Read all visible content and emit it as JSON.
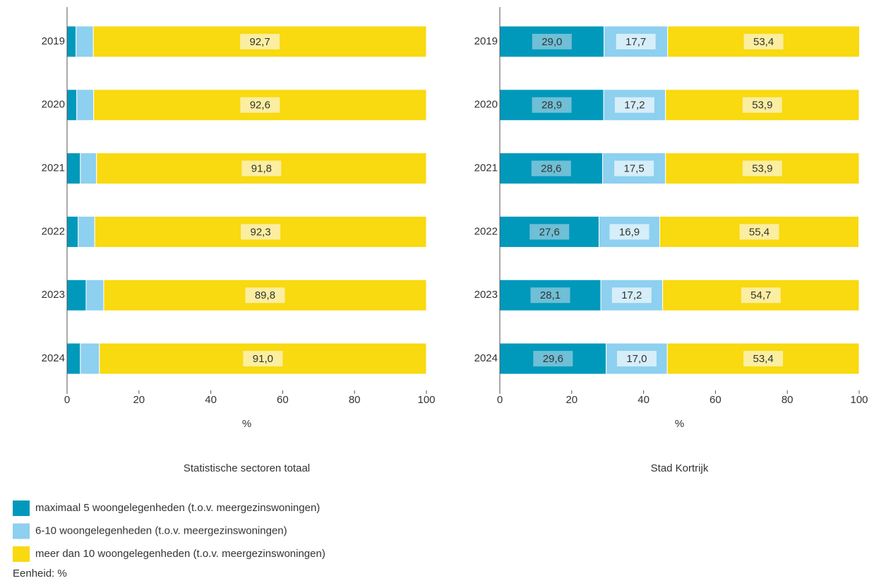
{
  "chart_data": [
    {
      "type": "bar",
      "title": "Statistische sectoren totaal",
      "xlabel": "%",
      "categories": [
        "2019",
        "2020",
        "2021",
        "2022",
        "2023",
        "2024"
      ],
      "xlim": [
        0,
        100
      ],
      "xticks": [
        0,
        20,
        40,
        60,
        80,
        100
      ],
      "series": [
        {
          "name": "maximaal 5 woongelegenheden (t.o.v. meergezinswoningen)",
          "color": "#0099bb",
          "values": [
            2.5,
            2.7,
            3.7,
            3.1,
            5.3,
            3.7
          ]
        },
        {
          "name": "6-10 woongelegenheden (t.o.v. meergezinswoningen)",
          "color": "#8dd0ef",
          "values": [
            4.8,
            4.7,
            4.5,
            4.6,
            4.9,
            5.3
          ]
        },
        {
          "name": "meer dan 10 woongelegenheden (t.o.v. meergezinswoningen)",
          "color": "#f9d90f",
          "values": [
            92.7,
            92.6,
            91.8,
            92.3,
            89.8,
            91.0
          ],
          "value_labels": [
            "92,7",
            "92,6",
            "91,8",
            "92,3",
            "89,8",
            "91,0"
          ]
        }
      ]
    },
    {
      "type": "bar",
      "title": "Stad Kortrijk",
      "xlabel": "%",
      "categories": [
        "2019",
        "2020",
        "2021",
        "2022",
        "2023",
        "2024"
      ],
      "xlim": [
        0,
        100
      ],
      "xticks": [
        0,
        20,
        40,
        60,
        80,
        100
      ],
      "series": [
        {
          "color": "#0099bb",
          "values": [
            29.0,
            28.9,
            28.6,
            27.6,
            28.1,
            29.6
          ],
          "value_labels": [
            "29,0",
            "28,9",
            "28,6",
            "27,6",
            "28,1",
            "29,6"
          ]
        },
        {
          "color": "#8dd0ef",
          "values": [
            17.7,
            17.2,
            17.5,
            16.9,
            17.2,
            17.0
          ],
          "value_labels": [
            "17,7",
            "17,2",
            "17,5",
            "16,9",
            "17,2",
            "17,0"
          ]
        },
        {
          "color": "#f9d90f",
          "values": [
            53.4,
            53.9,
            53.9,
            55.4,
            54.7,
            53.4
          ],
          "value_labels": [
            "53,4",
            "53,9",
            "53,9",
            "55,4",
            "54,7",
            "53,4"
          ]
        }
      ]
    }
  ],
  "footer": "Eenheid: %"
}
